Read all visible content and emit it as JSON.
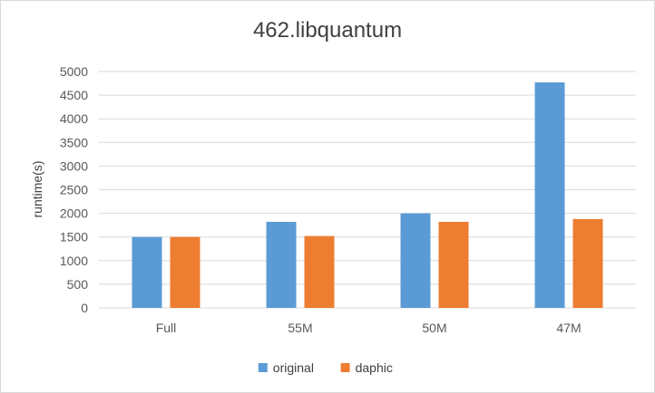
{
  "chart_data": {
    "type": "bar",
    "title": "462.libquantum",
    "xlabel": "",
    "ylabel": "runtime(s)",
    "categories": [
      "Full",
      "55M",
      "50M",
      "47M"
    ],
    "series": [
      {
        "name": "original",
        "values": [
          1500,
          1820,
          2000,
          4770
        ],
        "color": "#5b9bd5"
      },
      {
        "name": "daphic",
        "values": [
          1500,
          1520,
          1820,
          1880
        ],
        "color": "#ed7d31"
      }
    ],
    "ylim": [
      0,
      5000
    ],
    "yticks": [
      0,
      500,
      1000,
      1500,
      2000,
      2500,
      3000,
      3500,
      4000,
      4500,
      5000
    ],
    "grid": true,
    "legend_position": "bottom",
    "gridline_color": "#d9d9d9"
  }
}
